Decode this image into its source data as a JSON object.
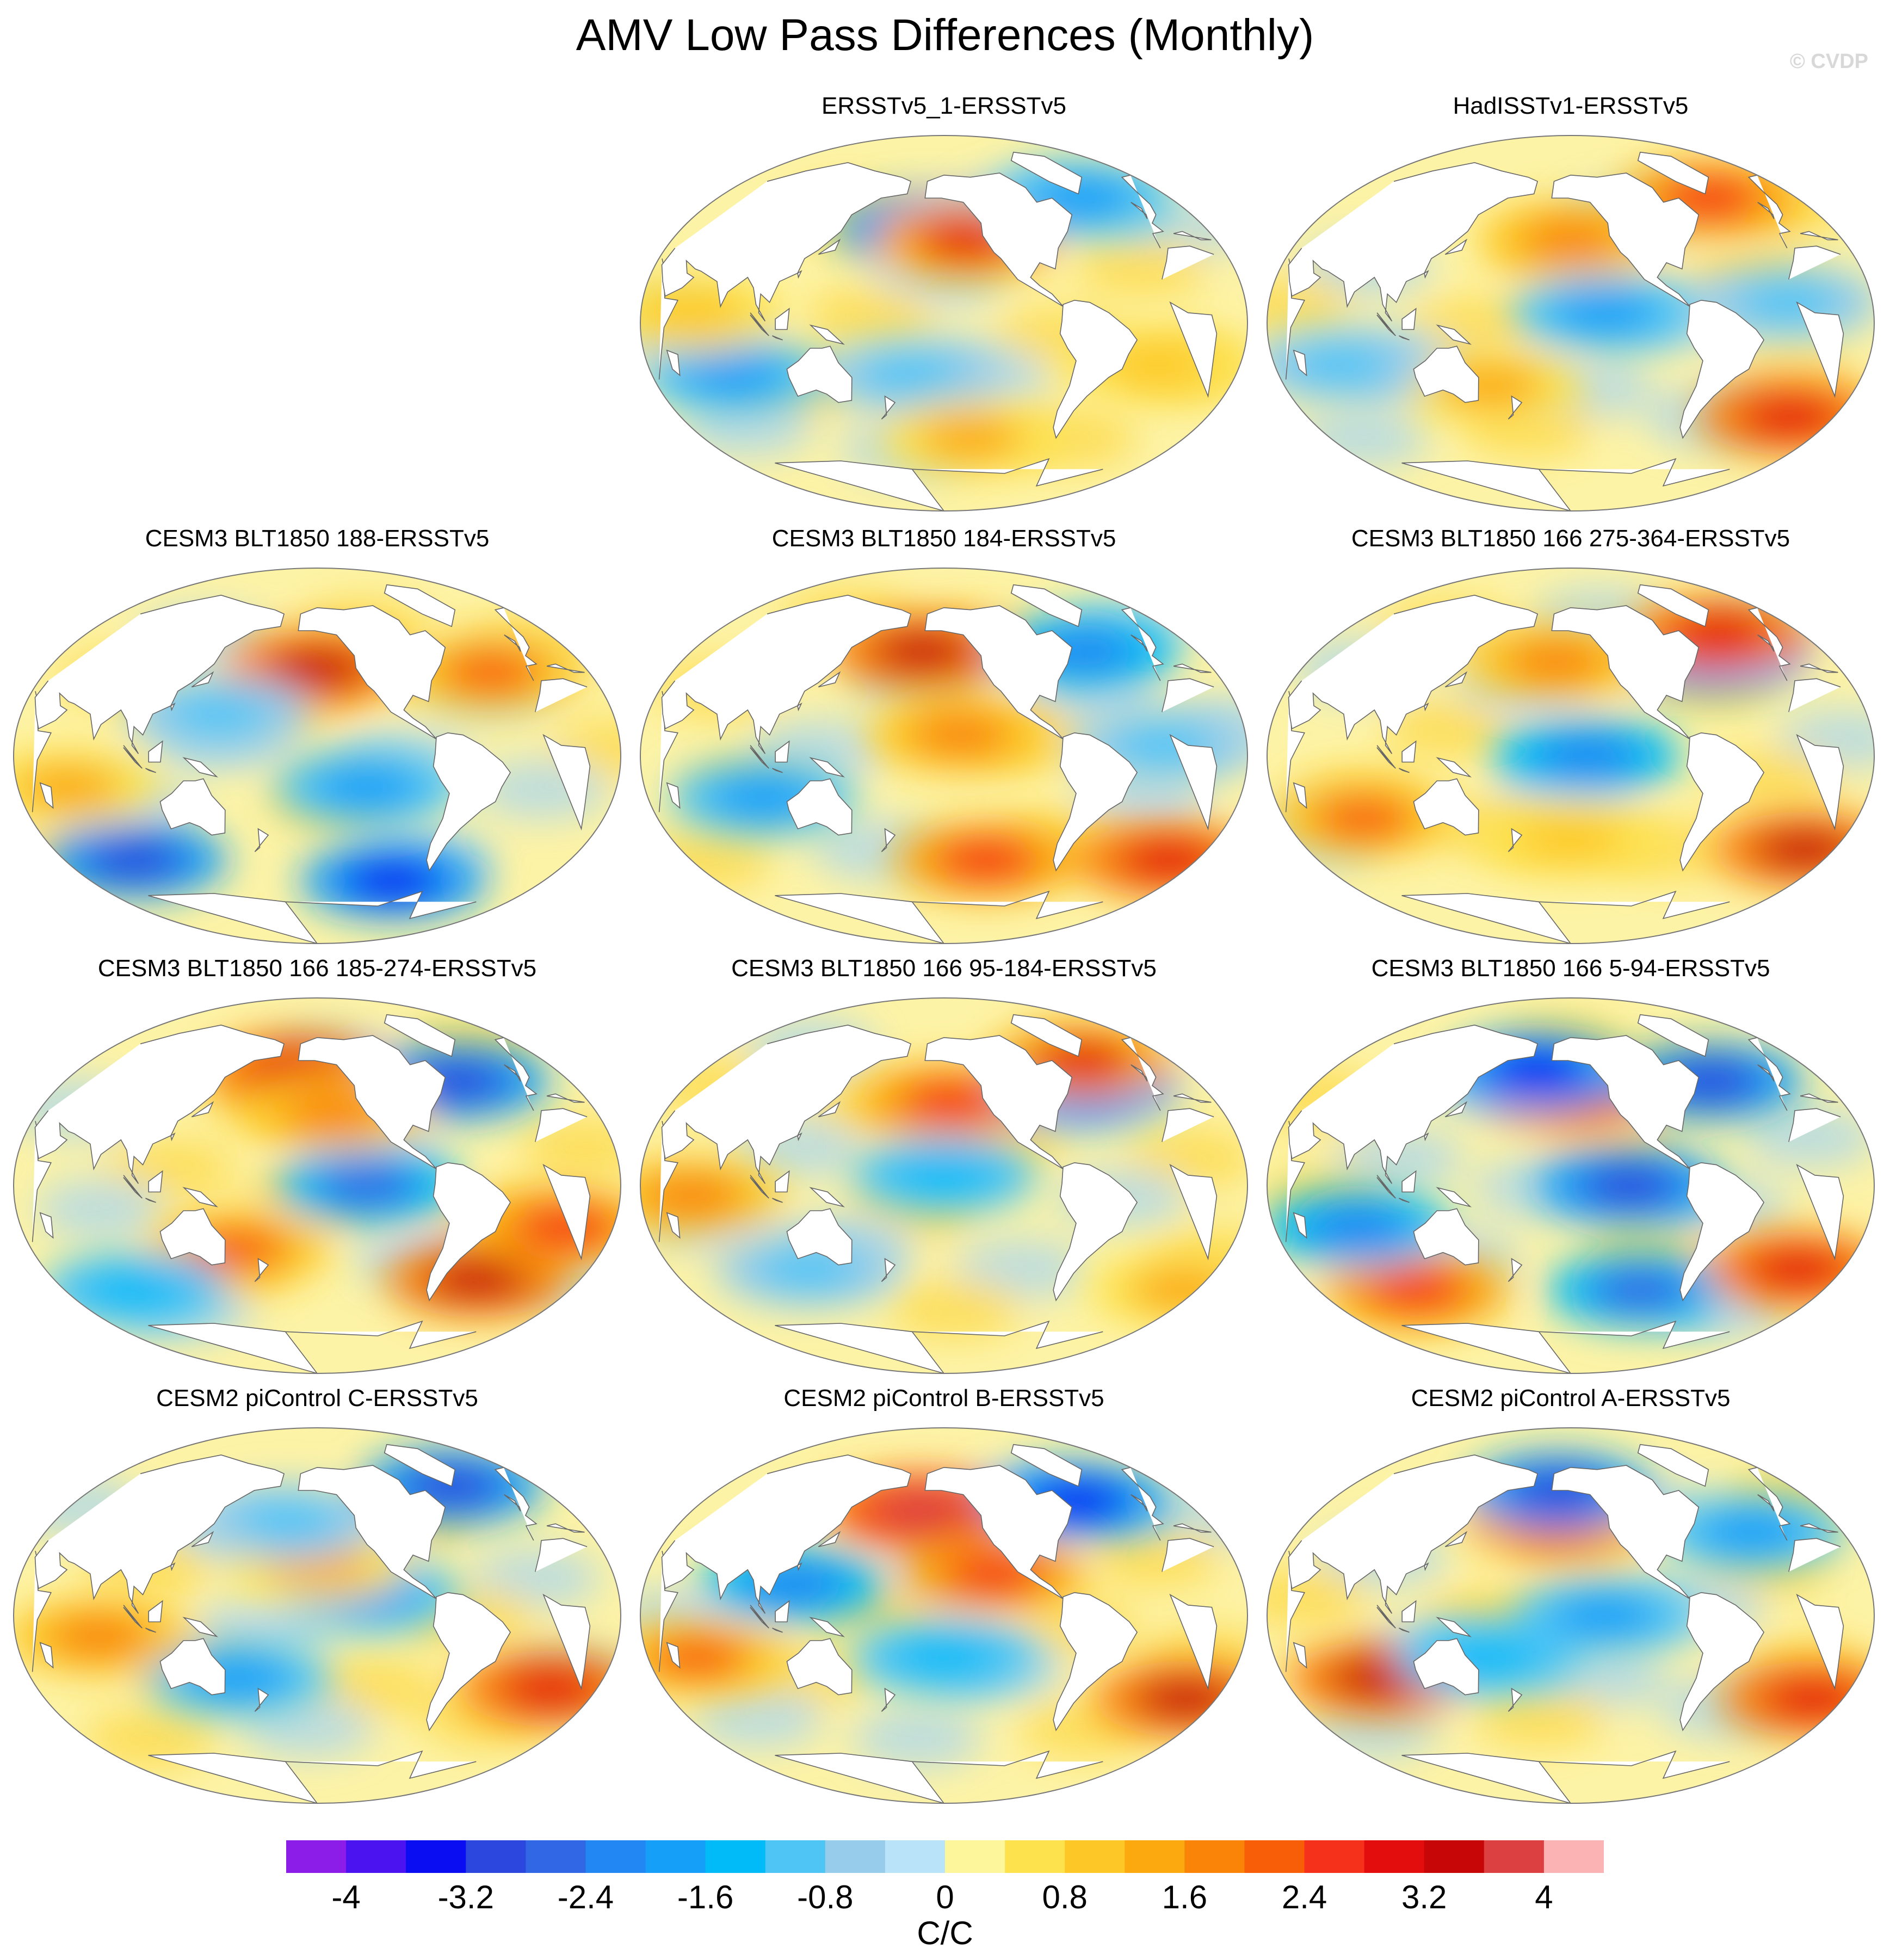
{
  "title": "AMV Low Pass Differences (Monthly)",
  "watermark": "© CVDP",
  "panels": [
    {
      "title": "ERSSTv5_1-ERSSTv5",
      "blobs": [
        {
          "lon": -160,
          "lat": 45,
          "v": -3.2
        },
        {
          "lon": -135,
          "lat": 40,
          "v": 2.8
        },
        {
          "lon": 80,
          "lat": -25,
          "v": -1.8
        },
        {
          "lon": -170,
          "lat": -25,
          "v": -1.2
        },
        {
          "lon": -40,
          "lat": 60,
          "v": -2.0
        },
        {
          "lon": 60,
          "lat": 5,
          "v": 1.0
        },
        {
          "lon": -20,
          "lat": -20,
          "v": 1.0
        },
        {
          "lon": -130,
          "lat": -55,
          "v": 1.2
        }
      ]
    },
    {
      "title": "HadISSTv1-ERSSTv5",
      "blobs": [
        {
          "lon": -150,
          "lat": 40,
          "v": 1.8
        },
        {
          "lon": -130,
          "lat": 5,
          "v": -2.0
        },
        {
          "lon": 0,
          "lat": -45,
          "v": 3.0
        },
        {
          "lon": -40,
          "lat": 60,
          "v": 2.4
        },
        {
          "lon": -20,
          "lat": 10,
          "v": -1.2
        },
        {
          "lon": 160,
          "lat": -30,
          "v": 1.4
        },
        {
          "lon": 70,
          "lat": -20,
          "v": -1.0
        }
      ]
    },
    {
      "title": "CESM3 BLT1850 188-ERSSTv5",
      "blobs": [
        {
          "lon": -150,
          "lat": 42,
          "v": 3.2
        },
        {
          "lon": -120,
          "lat": -15,
          "v": -2.0
        },
        {
          "lon": 80,
          "lat": -50,
          "v": -3.2
        },
        {
          "lon": -90,
          "lat": -60,
          "v": -3.6
        },
        {
          "lon": -35,
          "lat": 40,
          "v": 2.0
        },
        {
          "lon": 60,
          "lat": -15,
          "v": 1.4
        },
        {
          "lon": 150,
          "lat": 20,
          "v": -1.0
        }
      ]
    },
    {
      "title": "CESM3 BLT1850 184-ERSSTv5",
      "blobs": [
        {
          "lon": -165,
          "lat": 50,
          "v": 3.2
        },
        {
          "lon": 100,
          "lat": -20,
          "v": -1.8
        },
        {
          "lon": -120,
          "lat": -50,
          "v": 2.6
        },
        {
          "lon": 10,
          "lat": -50,
          "v": 3.0
        },
        {
          "lon": -50,
          "lat": 50,
          "v": -2.4
        },
        {
          "lon": -140,
          "lat": 10,
          "v": 1.6
        },
        {
          "lon": -20,
          "lat": 5,
          "v": -1.0
        }
      ]
    },
    {
      "title": "CESM3 BLT1850 166 275-364-ERSSTv5",
      "blobs": [
        {
          "lon": -140,
          "lat": 0,
          "v": -2.4
        },
        {
          "lon": 80,
          "lat": -30,
          "v": 2.0
        },
        {
          "lon": 10,
          "lat": -45,
          "v": 3.4
        },
        {
          "lon": -50,
          "lat": 48,
          "v": -3.2
        },
        {
          "lon": -160,
          "lat": 45,
          "v": 1.8
        },
        {
          "lon": -35,
          "lat": 58,
          "v": 3.0
        },
        {
          "lon": -150,
          "lat": -40,
          "v": 1.0
        }
      ]
    },
    {
      "title": "CESM3 BLT1850 166 185-274-ERSSTv5",
      "blobs": [
        {
          "lon": -120,
          "lat": 0,
          "v": -2.6
        },
        {
          "lon": 160,
          "lat": -30,
          "v": 2.0
        },
        {
          "lon": -40,
          "lat": -45,
          "v": 3.4
        },
        {
          "lon": 0,
          "lat": -20,
          "v": 2.6
        },
        {
          "lon": -165,
          "lat": 55,
          "v": 3.0
        },
        {
          "lon": -50,
          "lat": 50,
          "v": -3.0
        },
        {
          "lon": 80,
          "lat": -50,
          "v": -1.6
        },
        {
          "lon": -140,
          "lat": 35,
          "v": 1.8
        }
      ]
    },
    {
      "title": "CESM3 BLT1850 166 95-184-ERSSTv5",
      "blobs": [
        {
          "lon": -145,
          "lat": 40,
          "v": 2.6
        },
        {
          "lon": -150,
          "lat": 5,
          "v": -1.6
        },
        {
          "lon": 60,
          "lat": -5,
          "v": 1.6
        },
        {
          "lon": -50,
          "lat": 48,
          "v": -3.0
        },
        {
          "lon": -40,
          "lat": 60,
          "v": 2.8
        },
        {
          "lon": 20,
          "lat": -50,
          "v": 1.4
        },
        {
          "lon": 120,
          "lat": -40,
          "v": -1.0
        }
      ]
    },
    {
      "title": "CESM3 BLT1850 166 5-94-ERSSTv5",
      "blobs": [
        {
          "lon": -150,
          "lat": 45,
          "v": 3.2
        },
        {
          "lon": -175,
          "lat": 55,
          "v": -3.6
        },
        {
          "lon": -115,
          "lat": 0,
          "v": -3.0
        },
        {
          "lon": 100,
          "lat": -50,
          "v": 2.6
        },
        {
          "lon": -100,
          "lat": -50,
          "v": -2.6
        },
        {
          "lon": -50,
          "lat": 50,
          "v": -3.2
        },
        {
          "lon": 0,
          "lat": -40,
          "v": 3.0
        },
        {
          "lon": 80,
          "lat": -20,
          "v": -2.2
        }
      ]
    },
    {
      "title": "CESM2 piControl C-ERSSTv5",
      "blobs": [
        {
          "lon": 160,
          "lat": -30,
          "v": -2.0
        },
        {
          "lon": -120,
          "lat": 10,
          "v": -1.8
        },
        {
          "lon": 0,
          "lat": -35,
          "v": 3.0
        },
        {
          "lon": -40,
          "lat": 62,
          "v": -3.2
        },
        {
          "lon": 80,
          "lat": -10,
          "v": 1.6
        },
        {
          "lon": -150,
          "lat": 25,
          "v": 1.4
        },
        {
          "lon": -170,
          "lat": 45,
          "v": -1.2
        }
      ]
    },
    {
      "title": "CESM2 piControl B-ERSSTv5",
      "blobs": [
        {
          "lon": -165,
          "lat": 50,
          "v": 3.8
        },
        {
          "lon": -120,
          "lat": 20,
          "v": 2.4
        },
        {
          "lon": 120,
          "lat": 15,
          "v": -2.4
        },
        {
          "lon": -50,
          "lat": 55,
          "v": -3.4
        },
        {
          "lon": 10,
          "lat": -40,
          "v": 3.2
        },
        {
          "lon": 60,
          "lat": -20,
          "v": 2.0
        },
        {
          "lon": -150,
          "lat": -20,
          "v": -1.6
        }
      ]
    },
    {
      "title": "CESM2 piControl A-ERSSTv5",
      "blobs": [
        {
          "lon": 90,
          "lat": -30,
          "v": 3.4
        },
        {
          "lon": -160,
          "lat": 45,
          "v": 2.8
        },
        {
          "lon": -160,
          "lat": 60,
          "v": -3.2
        },
        {
          "lon": -130,
          "lat": 0,
          "v": -2.0
        },
        {
          "lon": 10,
          "lat": -40,
          "v": 3.0
        },
        {
          "lon": -30,
          "lat": 40,
          "v": -1.8
        },
        {
          "lon": 160,
          "lat": -20,
          "v": -1.6
        }
      ]
    }
  ],
  "colorbar": {
    "units": "C/C",
    "colors": [
      "#8c1ce8",
      "#4b13f0",
      "#0a0cf2",
      "#2b47dd",
      "#3167e4",
      "#2287f2",
      "#169ff8",
      "#00bbf8",
      "#4ec5f5",
      "#97cdea",
      "#b9e3f8",
      "#fdf69a",
      "#fde24e",
      "#fdc827",
      "#fba90f",
      "#f98408",
      "#f85d07",
      "#f5301b",
      "#e40d0d",
      "#c70707",
      "#dc4040",
      "#fbb3b3"
    ],
    "levels": [
      -4.4,
      -4,
      -3.6,
      -3.2,
      -2.8,
      -2.4,
      -2,
      -1.6,
      -1.2,
      -0.8,
      -0.4,
      0,
      0.4,
      0.8,
      1.2,
      1.6,
      2,
      2.4,
      2.8,
      3.2,
      3.6,
      4,
      4.4
    ],
    "tick_labels": [
      "-4",
      "-3.2",
      "-2.4",
      "-1.6",
      "-0.8",
      "0",
      "0.8",
      "1.6",
      "2.4",
      "3.2",
      "4"
    ]
  },
  "land": [
    [
      [
        -165,
        68
      ],
      [
        -150,
        71
      ],
      [
        -125,
        70
      ],
      [
        -95,
        72
      ],
      [
        -80,
        65
      ],
      [
        -78,
        58
      ],
      [
        -64,
        60
      ],
      [
        -57,
        52
      ],
      [
        -66,
        44
      ],
      [
        -76,
        36
      ],
      [
        -81,
        26
      ],
      [
        -90,
        29
      ],
      [
        -97,
        22
      ],
      [
        -92,
        18
      ],
      [
        -85,
        14
      ],
      [
        -79,
        8
      ],
      [
        -85,
        11
      ],
      [
        -95,
        16
      ],
      [
        -105,
        21
      ],
      [
        -114,
        31
      ],
      [
        -118,
        34
      ],
      [
        -124,
        42
      ],
      [
        -124,
        48
      ],
      [
        -135,
        58
      ],
      [
        -152,
        60
      ],
      [
        -165,
        60
      ]
    ],
    [
      [
        -79,
        9
      ],
      [
        -72,
        11
      ],
      [
        -63,
        10
      ],
      [
        -52,
        5
      ],
      [
        -40,
        -3
      ],
      [
        -35,
        -8
      ],
      [
        -39,
        -15
      ],
      [
        -41,
        -22
      ],
      [
        -48,
        -26
      ],
      [
        -58,
        -35
      ],
      [
        -63,
        -42
      ],
      [
        -66,
        -55
      ],
      [
        -72,
        -50
      ],
      [
        -74,
        -42
      ],
      [
        -71,
        -30
      ],
      [
        -70,
        -18
      ],
      [
        -76,
        -12
      ],
      [
        -81,
        -5
      ],
      [
        -80,
        1
      ]
    ],
    [
      [
        -17,
        21
      ],
      [
        -10,
        30
      ],
      [
        -5,
        36
      ],
      [
        10,
        37
      ],
      [
        22,
        33
      ],
      [
        32,
        31
      ],
      [
        35,
        28
      ],
      [
        43,
        12
      ],
      [
        51,
        11
      ],
      [
        44,
        -2
      ],
      [
        40,
        -15
      ],
      [
        33,
        -27
      ],
      [
        20,
        -35
      ],
      [
        15,
        -25
      ],
      [
        12,
        -5
      ],
      [
        9,
        4
      ],
      [
        -5,
        5
      ],
      [
        -15,
        10
      ]
    ],
    [
      [
        -10,
        36
      ],
      [
        -9,
        43
      ],
      [
        -1,
        44
      ],
      [
        -4,
        48
      ],
      [
        4,
        52
      ],
      [
        8,
        57
      ],
      [
        10,
        63
      ],
      [
        18,
        70
      ],
      [
        30,
        71
      ],
      [
        50,
        68
      ],
      [
        70,
        73
      ],
      [
        100,
        77
      ],
      [
        140,
        73
      ],
      [
        170,
        70
      ],
      [
        180,
        68
      ],
      [
        180,
        62
      ],
      [
        160,
        60
      ],
      [
        143,
        52
      ],
      [
        140,
        44
      ],
      [
        129,
        35
      ],
      [
        122,
        31
      ],
      [
        120,
        24
      ],
      [
        110,
        20
      ],
      [
        106,
        10
      ],
      [
        100,
        14
      ],
      [
        100,
        5
      ],
      [
        104,
        1
      ],
      [
        98,
        9
      ],
      [
        95,
        17
      ],
      [
        90,
        22
      ],
      [
        80,
        15
      ],
      [
        77,
        8
      ],
      [
        72,
        20
      ],
      [
        60,
        25
      ],
      [
        56,
        26
      ],
      [
        48,
        30
      ],
      [
        52,
        24
      ],
      [
        57,
        22
      ],
      [
        52,
        17
      ],
      [
        43,
        13
      ],
      [
        39,
        20
      ],
      [
        34,
        28
      ],
      [
        36,
        36
      ],
      [
        27,
        40
      ],
      [
        20,
        40
      ],
      [
        12,
        44
      ],
      [
        5,
        43
      ]
    ],
    [
      [
        114,
        -22
      ],
      [
        122,
        -18
      ],
      [
        130,
        -12
      ],
      [
        137,
        -12
      ],
      [
        142,
        -11
      ],
      [
        146,
        -19
      ],
      [
        153,
        -26
      ],
      [
        150,
        -37
      ],
      [
        141,
        -38
      ],
      [
        135,
        -34
      ],
      [
        129,
        -32
      ],
      [
        116,
        -35
      ],
      [
        114,
        -26
      ]
    ],
    [
      [
        -180,
        -70
      ],
      [
        -90,
        -72
      ],
      [
        -60,
        -65
      ],
      [
        -40,
        -78
      ],
      [
        0,
        -70
      ],
      [
        60,
        -67
      ],
      [
        120,
        -66
      ],
      [
        180,
        -70
      ],
      [
        180,
        -90
      ],
      [
        -180,
        -90
      ]
    ],
    [
      [
        -50,
        82
      ],
      [
        -20,
        80
      ],
      [
        -20,
        70
      ],
      [
        -40,
        62
      ],
      [
        -55,
        68
      ],
      [
        -70,
        78
      ]
    ],
    [
      [
        95,
        5
      ],
      [
        105,
        -5
      ],
      [
        100,
        0
      ]
    ],
    [
      [
        110,
        -7
      ],
      [
        114,
        -8
      ],
      [
        108,
        -6
      ]
    ],
    [
      [
        110,
        2
      ],
      [
        118,
        7
      ],
      [
        117,
        -3
      ],
      [
        110,
        -3
      ]
    ],
    [
      [
        131,
        -1
      ],
      [
        141,
        -3
      ],
      [
        150,
        -10
      ],
      [
        140,
        -8
      ]
    ],
    [
      [
        95,
        4
      ],
      [
        106,
        -6
      ],
      [
        102,
        -3
      ]
    ],
    [
      [
        -5,
        50
      ],
      [
        -2,
        55
      ],
      [
        -5,
        58
      ],
      [
        -3,
        52
      ]
    ],
    [
      [
        44,
        -13
      ],
      [
        50,
        -15
      ],
      [
        47,
        -25
      ],
      [
        44,
        -22
      ]
    ],
    [
      [
        130,
        33
      ],
      [
        141,
        40
      ],
      [
        140,
        35
      ]
    ],
    [
      [
        121,
        22
      ],
      [
        122,
        25
      ],
      [
        120,
        24
      ]
    ],
    [
      [
        172,
        -35
      ],
      [
        178,
        -38
      ],
      [
        167,
        -46
      ],
      [
        171,
        -44
      ]
    ]
  ]
}
